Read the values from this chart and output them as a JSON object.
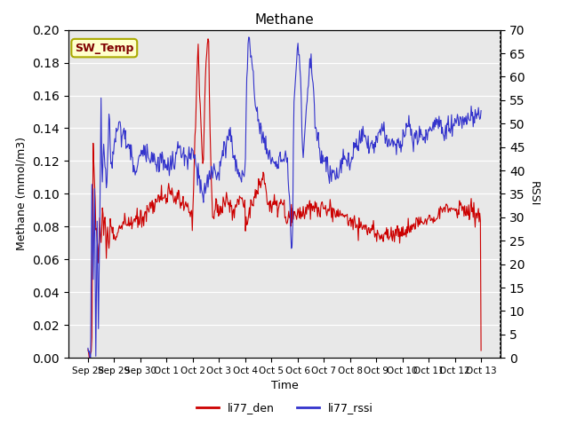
{
  "title": "Methane",
  "xlabel": "Time",
  "ylabel_left": "Methane (mmol/m3)",
  "ylabel_right": "RSSI",
  "ylim_left": [
    0.0,
    0.2
  ],
  "ylim_right": [
    0,
    70
  ],
  "yticks_left": [
    0.0,
    0.02,
    0.04,
    0.06,
    0.08,
    0.1,
    0.12,
    0.14,
    0.16,
    0.18,
    0.2
  ],
  "yticks_right": [
    0,
    5,
    10,
    15,
    20,
    25,
    30,
    35,
    40,
    45,
    50,
    55,
    60,
    65,
    70
  ],
  "bg_color": "#e8e8e8",
  "line_color_red": "#cc0000",
  "line_color_blue": "#3333cc",
  "legend_labels": [
    "li77_den",
    "li77_rssi"
  ],
  "annotation_text": "SW_Temp",
  "annotation_box_color": "#ffffcc",
  "annotation_text_color": "#800000",
  "annotation_border_color": "#aaaa00",
  "x_tick_labels": [
    "Sep 28",
    "Sep 29",
    "Sep 30",
    "Oct 1",
    "Oct 2",
    "Oct 3",
    "Oct 4",
    "Oct 5",
    "Oct 6",
    "Oct 7",
    "Oct 8",
    "Oct 9",
    "Oct 10",
    "Oct 11",
    "Oct 12",
    "Oct 13"
  ],
  "num_points": 600
}
